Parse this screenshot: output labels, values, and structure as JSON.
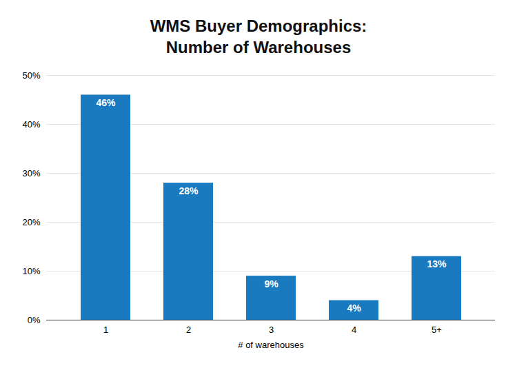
{
  "chart_data": {
    "type": "bar",
    "title": "WMS Buyer Demographics:\nNumber of Warehouses",
    "categories": [
      "1",
      "2",
      "3",
      "4",
      "5+"
    ],
    "values": [
      46,
      28,
      9,
      4,
      13
    ],
    "value_labels": [
      "46%",
      "28%",
      "9%",
      "4%",
      "13%"
    ],
    "data_labels": true,
    "color": "#1a7abf",
    "xlabel": "# of warehouses",
    "ylim": [
      0,
      50
    ],
    "yticks": [
      {
        "value": 0,
        "label": "0%"
      },
      {
        "value": 10,
        "label": "10%"
      },
      {
        "value": 20,
        "label": "20%"
      },
      {
        "value": 30,
        "label": "30%"
      },
      {
        "value": 40,
        "label": "40%"
      },
      {
        "value": 50,
        "label": "50%"
      }
    ],
    "grid": true
  }
}
